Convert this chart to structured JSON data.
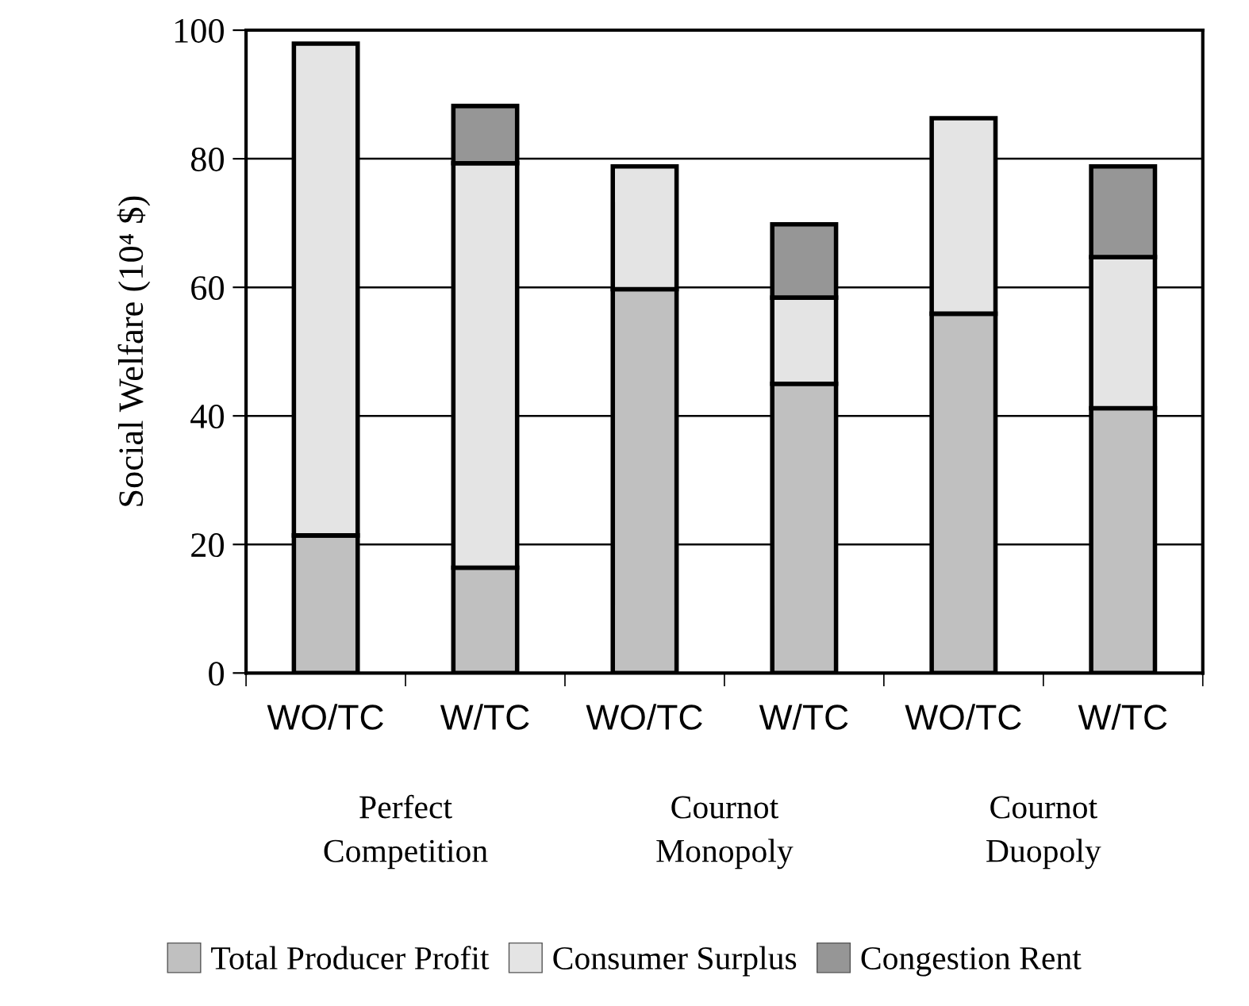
{
  "chart_data": {
    "type": "bar",
    "stacked": true,
    "ylabel": "Social Welfare (10⁴ $)",
    "categories": [
      "WO/TC",
      "W/TC",
      "WO/TC",
      "W/TC",
      "WO/TC",
      "W/TC"
    ],
    "annotations": [
      "Perfect\nCompetition",
      "Cournot\nMonopoly",
      "Cournot\nDuopoly"
    ],
    "series": [
      {
        "name": "Total Producer Profit",
        "color": "#c0c0c0",
        "values": [
          21.4,
          16.4,
          59.7,
          45,
          55.9,
          41.2
        ]
      },
      {
        "name": "Consumer Surplus",
        "color": "#e4e4e4",
        "values": [
          76.5,
          62.9,
          19.1,
          13.4,
          30.4,
          23.5
        ]
      },
      {
        "name": "Congestion Rent",
        "color": "#969696",
        "values": [
          null,
          8.9,
          null,
          11.4,
          null,
          14.1
        ]
      }
    ],
    "ylim": [
      0,
      100
    ],
    "yticks": [
      0,
      20,
      40,
      60,
      80,
      100
    ],
    "grid": "y",
    "legend": "bottom"
  }
}
